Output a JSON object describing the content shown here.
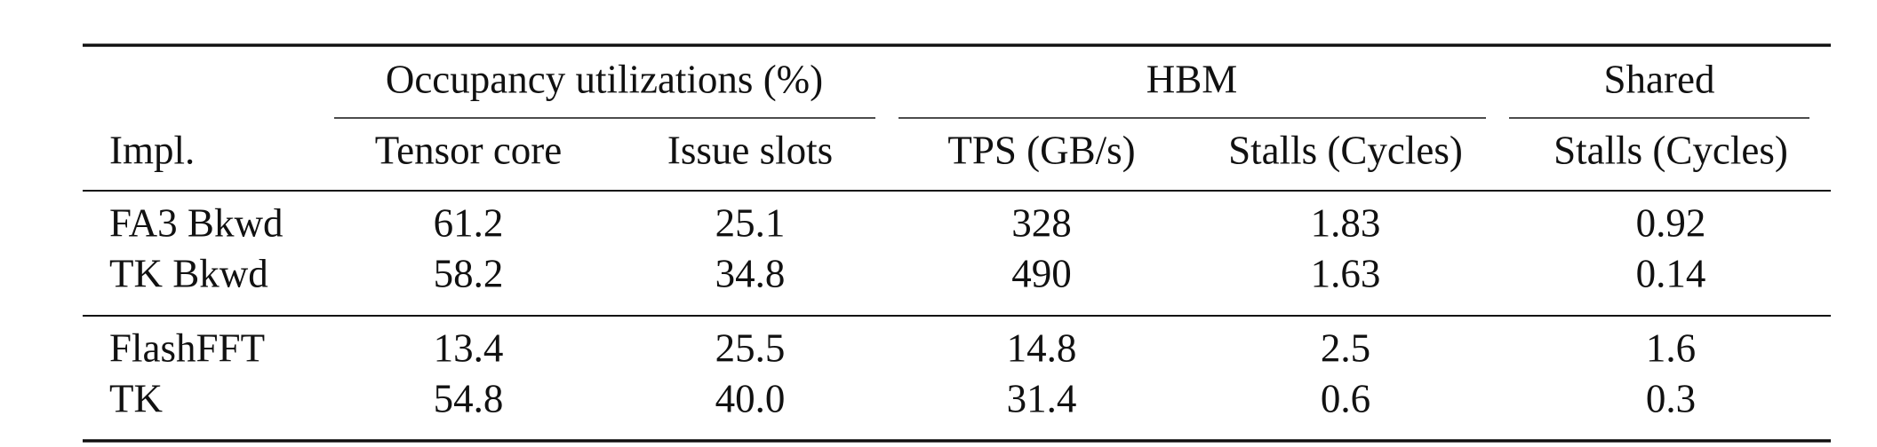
{
  "table": {
    "group_headers": [
      "Occupancy utilizations (%)",
      "HBM",
      "Shared"
    ],
    "columns": [
      "Impl.",
      "Tensor core",
      "Issue slots",
      "TPS (GB/s)",
      "Stalls (Cycles)",
      "Stalls (Cycles)"
    ],
    "row_groups": [
      [
        [
          "FA3 Bkwd",
          "61.2",
          "25.1",
          "328",
          "1.83",
          "0.92"
        ],
        [
          "TK Bkwd",
          "58.2",
          "34.8",
          "490",
          "1.63",
          "0.14"
        ]
      ],
      [
        [
          "FlashFFT",
          "13.4",
          "25.5",
          "14.8",
          "2.5",
          "1.6"
        ],
        [
          "TK",
          "54.8",
          "40.0",
          "31.4",
          "0.6",
          "0.3"
        ]
      ]
    ]
  }
}
